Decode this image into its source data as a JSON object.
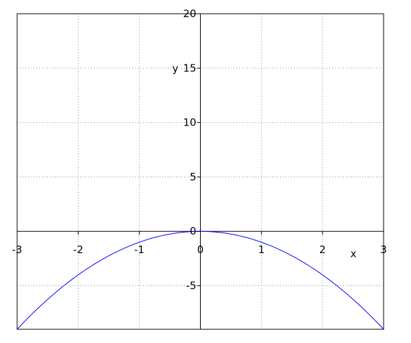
{
  "chart_data": {
    "type": "line",
    "title": "",
    "xlabel": "x",
    "ylabel": "y",
    "xlim": [
      -3,
      3
    ],
    "ylim": [
      -9,
      20
    ],
    "xticks": [
      -3,
      -2,
      -1,
      0,
      1,
      2,
      3
    ],
    "yticks": [
      -5,
      0,
      5,
      10,
      15,
      20
    ],
    "xtick_labels": [
      "-3",
      "-2",
      "-1",
      "0",
      "1",
      "2",
      "3"
    ],
    "ytick_labels": [
      "-5",
      "0",
      "5",
      "10",
      "15",
      "20"
    ],
    "grid": true,
    "grid_style": "dotted",
    "series": [
      {
        "function": "y = -x^2",
        "color": "#0000ff",
        "x_range": [
          -3,
          3
        ]
      }
    ]
  }
}
